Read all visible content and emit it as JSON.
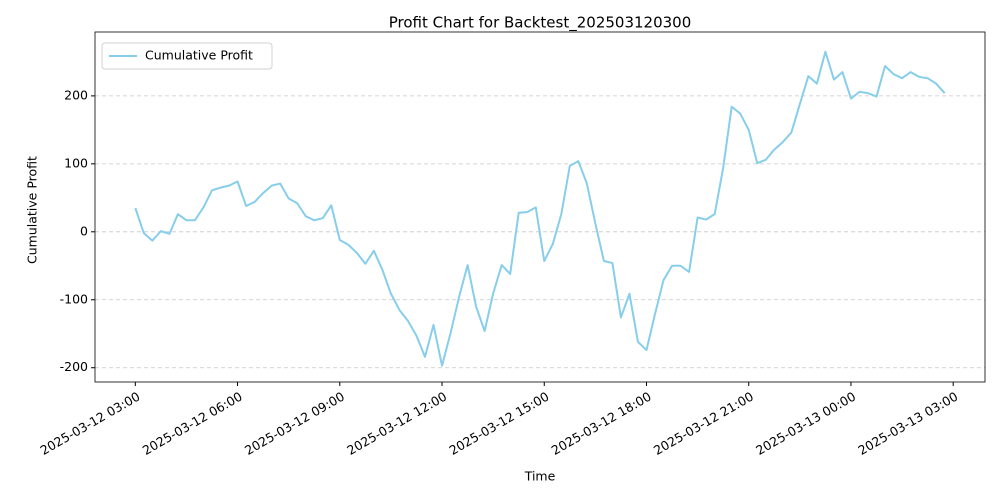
{
  "chart_data": {
    "type": "line",
    "title": "Profit Chart for Backtest_202503120300",
    "xlabel": "Time",
    "ylabel": "Cumulative Profit",
    "x": [
      "2025-03-12 03:00",
      "2025-03-12 03:15",
      "2025-03-12 03:30",
      "2025-03-12 03:45",
      "2025-03-12 04:00",
      "2025-03-12 04:15",
      "2025-03-12 04:30",
      "2025-03-12 04:45",
      "2025-03-12 05:00",
      "2025-03-12 05:15",
      "2025-03-12 05:30",
      "2025-03-12 05:45",
      "2025-03-12 06:00",
      "2025-03-12 06:15",
      "2025-03-12 06:30",
      "2025-03-12 06:45",
      "2025-03-12 07:00",
      "2025-03-12 07:15",
      "2025-03-12 07:30",
      "2025-03-12 07:45",
      "2025-03-12 08:00",
      "2025-03-12 08:15",
      "2025-03-12 08:30",
      "2025-03-12 08:45",
      "2025-03-12 09:00",
      "2025-03-12 09:15",
      "2025-03-12 09:30",
      "2025-03-12 09:45",
      "2025-03-12 10:00",
      "2025-03-12 10:15",
      "2025-03-12 10:30",
      "2025-03-12 10:45",
      "2025-03-12 11:00",
      "2025-03-12 11:15",
      "2025-03-12 11:30",
      "2025-03-12 11:45",
      "2025-03-12 12:00",
      "2025-03-12 12:15",
      "2025-03-12 12:30",
      "2025-03-12 12:45",
      "2025-03-12 13:00",
      "2025-03-12 13:15",
      "2025-03-12 13:30",
      "2025-03-12 13:45",
      "2025-03-12 14:00",
      "2025-03-12 14:15",
      "2025-03-12 14:30",
      "2025-03-12 14:45",
      "2025-03-12 15:00",
      "2025-03-12 15:15",
      "2025-03-12 15:30",
      "2025-03-12 15:45",
      "2025-03-12 16:00",
      "2025-03-12 16:15",
      "2025-03-12 16:30",
      "2025-03-12 16:45",
      "2025-03-12 17:00",
      "2025-03-12 17:15",
      "2025-03-12 17:30",
      "2025-03-12 17:45",
      "2025-03-12 18:00",
      "2025-03-12 18:15",
      "2025-03-12 18:30",
      "2025-03-12 18:45",
      "2025-03-12 19:00",
      "2025-03-12 19:15",
      "2025-03-12 19:30",
      "2025-03-12 19:45",
      "2025-03-12 20:00",
      "2025-03-12 20:15",
      "2025-03-12 20:30",
      "2025-03-12 20:45",
      "2025-03-12 21:00",
      "2025-03-12 21:15",
      "2025-03-12 21:30",
      "2025-03-12 21:45",
      "2025-03-12 22:00",
      "2025-03-12 22:15",
      "2025-03-12 22:30",
      "2025-03-12 22:45",
      "2025-03-12 23:00",
      "2025-03-12 23:15",
      "2025-03-12 23:30",
      "2025-03-12 23:45",
      "2025-03-13 00:00",
      "2025-03-13 00:15",
      "2025-03-13 00:30",
      "2025-03-13 00:45",
      "2025-03-13 01:00",
      "2025-03-13 01:15",
      "2025-03-13 01:30",
      "2025-03-13 01:45",
      "2025-03-13 02:00",
      "2025-03-13 02:15",
      "2025-03-13 02:30",
      "2025-03-13 02:45"
    ],
    "series": [
      {
        "name": "Cumulative Profit",
        "color": "#87ceeb",
        "values": [
          35,
          -2,
          -13,
          1,
          -3,
          26,
          17,
          17,
          36,
          61,
          65,
          68,
          74,
          38,
          44,
          57,
          68,
          71,
          49,
          42,
          23,
          17,
          20,
          39,
          -12,
          -19,
          -31,
          -47,
          -28,
          -56,
          -91,
          -115,
          -131,
          -153,
          -184,
          -137,
          -197,
          -149,
          -96,
          -49,
          -110,
          -146,
          -91,
          -49,
          -62,
          28,
          29,
          36,
          -43,
          -18,
          26,
          97,
          104,
          71,
          12,
          -43,
          -46,
          -126,
          -91,
          -162,
          -174,
          -121,
          -71,
          -50,
          -50,
          -59,
          21,
          18,
          26,
          94,
          184,
          174,
          150,
          101,
          106,
          121,
          132,
          146,
          188,
          229,
          218,
          265,
          224,
          235,
          196,
          206,
          204,
          199,
          244,
          232,
          226,
          235,
          228,
          226,
          218,
          204
        ]
      }
    ],
    "xlim": [
      "2025-03-12 01:49",
      "2025-03-13 03:56"
    ],
    "xticks": [
      "2025-03-12 03:00",
      "2025-03-12 06:00",
      "2025-03-12 09:00",
      "2025-03-12 12:00",
      "2025-03-12 15:00",
      "2025-03-12 18:00",
      "2025-03-12 21:00",
      "2025-03-13 00:00",
      "2025-03-13 03:00"
    ],
    "ylim": [
      -221,
      294
    ],
    "yticks": [
      -200,
      -100,
      0,
      100,
      200
    ],
    "grid": true,
    "legend": "upper left"
  }
}
